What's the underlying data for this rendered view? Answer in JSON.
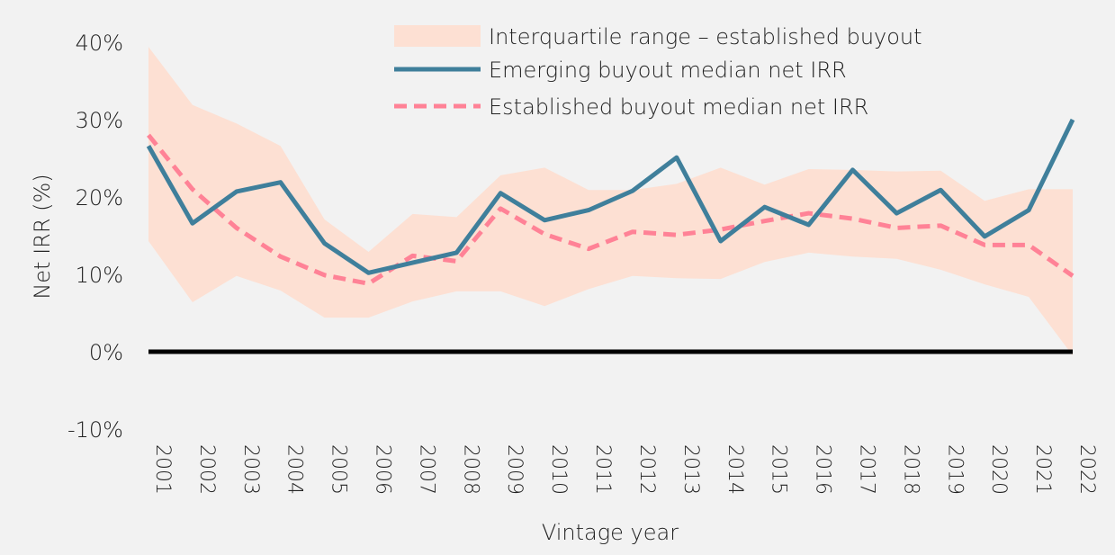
{
  "chart_data": {
    "type": "line",
    "xlabel": "Vintage year",
    "ylabel": "Net IRR (%)",
    "ylim": [
      -10,
      40
    ],
    "yticks": [
      -10,
      0,
      10,
      20,
      30,
      40
    ],
    "ytick_labels": [
      "-10%",
      "0%",
      "10%",
      "20%",
      "30%",
      "40%"
    ],
    "grid": false,
    "legend_position": "top-center",
    "categories": [
      "2001",
      "2002",
      "2003",
      "2004",
      "2005",
      "2006",
      "2007",
      "2008",
      "2009",
      "2010",
      "2011",
      "2012",
      "2013",
      "2014",
      "2015",
      "2016",
      "2017",
      "2018",
      "2019",
      "2020",
      "2021",
      "2022"
    ],
    "band": {
      "name": "Interquartile range – established buyout",
      "color": "#fde0d3",
      "upper": [
        39.4,
        31.9,
        29.5,
        26.6,
        17.1,
        12.9,
        17.8,
        17.4,
        22.8,
        23.8,
        20.9,
        20.9,
        21.7,
        23.8,
        21.6,
        23.6,
        23.5,
        23.3,
        23.4,
        19.5,
        21.0,
        21.0
      ],
      "lower": [
        14.3,
        6.4,
        9.8,
        7.9,
        4.4,
        4.4,
        6.5,
        7.8,
        7.8,
        5.9,
        8.1,
        9.8,
        9.5,
        9.4,
        11.6,
        12.8,
        12.3,
        12.0,
        10.6,
        8.7,
        7.1,
        -0.5
      ]
    },
    "series": [
      {
        "name": "Emerging buyout median net IRR",
        "color": "#3f7f9b",
        "style": "solid",
        "values": [
          26.6,
          16.6,
          20.7,
          21.9,
          14.0,
          10.2,
          11.5,
          12.8,
          20.5,
          17.0,
          18.3,
          20.8,
          25.1,
          14.3,
          18.7,
          16.4,
          23.5,
          17.9,
          20.9,
          14.9,
          18.3,
          30.0
        ]
      },
      {
        "name": "Established buyout median net IRR",
        "color": "#ff8296",
        "style": "dashed",
        "values": [
          28.0,
          21.0,
          16.0,
          12.3,
          9.9,
          8.8,
          12.4,
          11.7,
          18.5,
          15.2,
          13.3,
          15.5,
          15.1,
          15.8,
          16.9,
          17.9,
          17.2,
          16.0,
          16.3,
          13.8,
          13.8,
          9.8
        ]
      }
    ],
    "zero_line_color": "#000000"
  }
}
